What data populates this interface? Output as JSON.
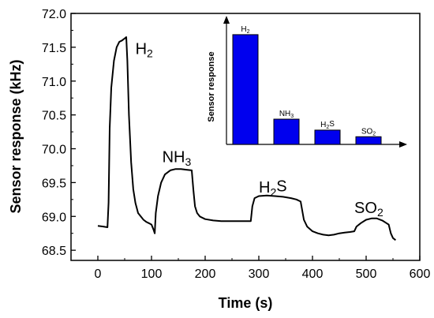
{
  "chart_data": [
    {
      "type": "line",
      "title": "",
      "xlabel": "Time (s)",
      "ylabel": "Sensor response (kHz)",
      "xlim": [
        -50,
        600
      ],
      "ylim": [
        68.35,
        72.0
      ],
      "xticks": [
        0,
        100,
        200,
        300,
        400,
        500,
        600
      ],
      "yticks": [
        68.5,
        69.0,
        69.5,
        70.0,
        70.5,
        71.0,
        71.5,
        72.0
      ],
      "xtick_labels": [
        "0",
        "100",
        "200",
        "300",
        "400",
        "500",
        "600"
      ],
      "ytick_labels": [
        "68.5",
        "69.0",
        "69.5",
        "70.0",
        "70.5",
        "71.0",
        "71.5",
        "72.0"
      ],
      "grid": false,
      "series": [
        {
          "color": "#000000",
          "x": [
            0,
            10,
            18,
            20,
            22,
            25,
            30,
            35,
            40,
            45,
            50,
            53,
            55,
            58,
            62,
            66,
            70,
            75,
            80,
            85,
            90,
            95,
            100,
            104,
            106,
            108,
            112,
            118,
            125,
            135,
            145,
            155,
            165,
            175,
            178,
            181,
            185,
            190,
            200,
            215,
            230,
            250,
            270,
            285,
            288,
            292,
            300,
            315,
            330,
            345,
            360,
            370,
            378,
            384,
            390,
            400,
            410,
            420,
            430,
            440,
            450,
            460,
            470,
            478,
            482,
            490,
            500,
            510,
            520,
            530,
            538,
            542,
            546,
            550,
            555
          ],
          "y": [
            68.86,
            68.85,
            68.84,
            69.2,
            70.3,
            70.9,
            71.3,
            71.5,
            71.58,
            71.6,
            71.63,
            71.65,
            71.3,
            70.5,
            69.8,
            69.4,
            69.2,
            69.05,
            69.0,
            68.95,
            68.92,
            68.9,
            68.88,
            68.8,
            68.75,
            69.05,
            69.3,
            69.5,
            69.62,
            69.68,
            69.7,
            69.7,
            69.69,
            69.68,
            69.4,
            69.15,
            69.05,
            69.0,
            68.96,
            68.94,
            68.93,
            68.93,
            68.93,
            68.93,
            69.15,
            69.27,
            69.3,
            69.31,
            69.3,
            69.29,
            69.27,
            69.25,
            69.22,
            68.95,
            68.85,
            68.78,
            68.75,
            68.73,
            68.72,
            68.73,
            68.75,
            68.76,
            68.77,
            68.78,
            68.85,
            68.9,
            68.95,
            68.97,
            68.97,
            68.94,
            68.9,
            68.88,
            68.75,
            68.68,
            68.65
          ]
        }
      ],
      "annotations": [
        {
          "text": "H",
          "sub": "2",
          "x": 70,
          "y": 71.4
        },
        {
          "text": "NH",
          "sub": "3",
          "x": 120,
          "y": 69.8
        },
        {
          "text": "H",
          "sub": "2",
          "tail": "S",
          "x": 300,
          "y": 69.35
        },
        {
          "text": "SO",
          "sub": "2",
          "x": 478,
          "y": 69.05
        }
      ]
    },
    {
      "type": "bar",
      "title": "",
      "xlabel": "",
      "ylabel": "Sensor response",
      "ylim": [
        0,
        1.1
      ],
      "bar_color": "#0000ee",
      "categories": [
        {
          "text": "H",
          "sub": "2",
          "tail": ""
        },
        {
          "text": "NH",
          "sub": "3",
          "tail": ""
        },
        {
          "text": "H",
          "sub": "2",
          "tail": "S"
        },
        {
          "text": "SO",
          "sub": "2",
          "tail": ""
        }
      ],
      "values": [
        1.0,
        0.23,
        0.13,
        0.07
      ]
    }
  ]
}
